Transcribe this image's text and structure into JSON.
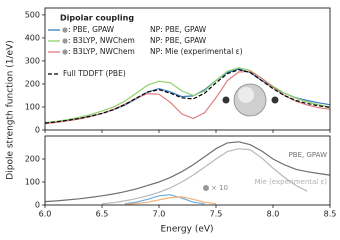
{
  "chart_data": [
    {
      "type": "line",
      "ylabel": "Dipole strength function (1/eV)",
      "legend_title": "Dipolar coupling",
      "x": [
        6.0,
        6.1,
        6.2,
        6.3,
        6.4,
        6.5,
        6.6,
        6.7,
        6.8,
        6.9,
        7.0,
        7.1,
        7.2,
        7.3,
        7.4,
        7.5,
        7.6,
        7.7,
        7.8,
        7.9,
        8.0,
        8.1,
        8.2,
        8.3,
        8.4,
        8.5
      ],
      "xlim": [
        6.0,
        8.5
      ],
      "xticks": [
        6,
        6.5,
        7,
        7.5,
        8,
        8.5
      ],
      "ylim": [
        0,
        530
      ],
      "yticks": [
        0,
        100,
        200,
        300,
        400,
        500
      ],
      "series": [
        {
          "name": ": PBE, GPAW",
          "np": "NP: PBE, GPAW",
          "color": "#3a7cc3",
          "values": [
            30,
            35,
            42,
            50,
            60,
            72,
            88,
            108,
            135,
            165,
            180,
            165,
            145,
            148,
            175,
            215,
            250,
            265,
            250,
            215,
            185,
            160,
            140,
            128,
            118,
            110
          ]
        },
        {
          "name": ": B3LYP, NWChem",
          "np": "NP: PBE, GPAW",
          "color": "#8fd16a",
          "values": [
            32,
            38,
            45,
            55,
            67,
            82,
            100,
            125,
            160,
            195,
            212,
            205,
            170,
            150,
            170,
            215,
            255,
            270,
            258,
            225,
            190,
            160,
            138,
            122,
            110,
            100
          ]
        },
        {
          "name": ": B3LYP, NWChem",
          "np": "NP: Mie (experimental ε)",
          "color": "#e07b7b",
          "values": [
            28,
            33,
            40,
            48,
            58,
            72,
            90,
            112,
            138,
            158,
            155,
            120,
            70,
            50,
            75,
            140,
            215,
            252,
            255,
            225,
            185,
            150,
            125,
            108,
            97,
            90
          ]
        },
        {
          "name": "Full TDDFT (PBE)",
          "color": "#000000",
          "dash": true,
          "values": [
            30,
            35,
            42,
            50,
            60,
            72,
            88,
            110,
            138,
            165,
            175,
            160,
            140,
            135,
            160,
            205,
            245,
            262,
            250,
            215,
            180,
            150,
            128,
            115,
            105,
            98
          ]
        }
      ]
    },
    {
      "type": "line",
      "xlabel": "Energy (eV)",
      "annotation": "× 10",
      "x": [
        6.0,
        6.1,
        6.2,
        6.3,
        6.4,
        6.5,
        6.6,
        6.7,
        6.8,
        6.9,
        7.0,
        7.1,
        7.2,
        7.3,
        7.4,
        7.5,
        7.6,
        7.7,
        7.8,
        7.9,
        8.0,
        8.1,
        8.2,
        8.3,
        8.4,
        8.5
      ],
      "xlim": [
        6.0,
        8.5
      ],
      "xticks": [
        {
          "value": 6,
          "label": "6.0"
        },
        {
          "value": 6.5,
          "label": "6.5"
        },
        {
          "value": 7,
          "label": "7.0"
        },
        {
          "value": 7.5,
          "label": "7.5"
        },
        {
          "value": 8,
          "label": "8.0"
        },
        {
          "value": 8.5,
          "label": "8.5"
        }
      ],
      "ylim": [
        0,
        300
      ],
      "yticks": [
        0,
        100,
        200
      ],
      "series": [
        {
          "name": "PBE, GPAW",
          "color": "#707070",
          "values": [
            15,
            18,
            22,
            27,
            33,
            40,
            48,
            58,
            70,
            85,
            100,
            120,
            145,
            175,
            210,
            245,
            270,
            275,
            262,
            235,
            200,
            175,
            155,
            145,
            137,
            130
          ]
        },
        {
          "name": "Mie (experimental ε)",
          "color": "#b8b8b8",
          "values": [
            null,
            null,
            null,
            null,
            null,
            5,
            10,
            18,
            28,
            40,
            55,
            75,
            100,
            130,
            165,
            200,
            232,
            245,
            240,
            205,
            160,
            120,
            85,
            60,
            null,
            null
          ]
        },
        {
          "color": "#6aaee0",
          "values": [
            null,
            null,
            null,
            null,
            null,
            null,
            null,
            5,
            12,
            25,
            40,
            45,
            30,
            12,
            5,
            null,
            null,
            null,
            null,
            null,
            null,
            null,
            null,
            null,
            null,
            null
          ]
        },
        {
          "color": "#f2b27a",
          "values": [
            null,
            null,
            null,
            null,
            null,
            null,
            null,
            3,
            6,
            12,
            22,
            32,
            35,
            25,
            12,
            5,
            null,
            null,
            null,
            null,
            null,
            null,
            null,
            null,
            null,
            null
          ]
        }
      ]
    }
  ]
}
